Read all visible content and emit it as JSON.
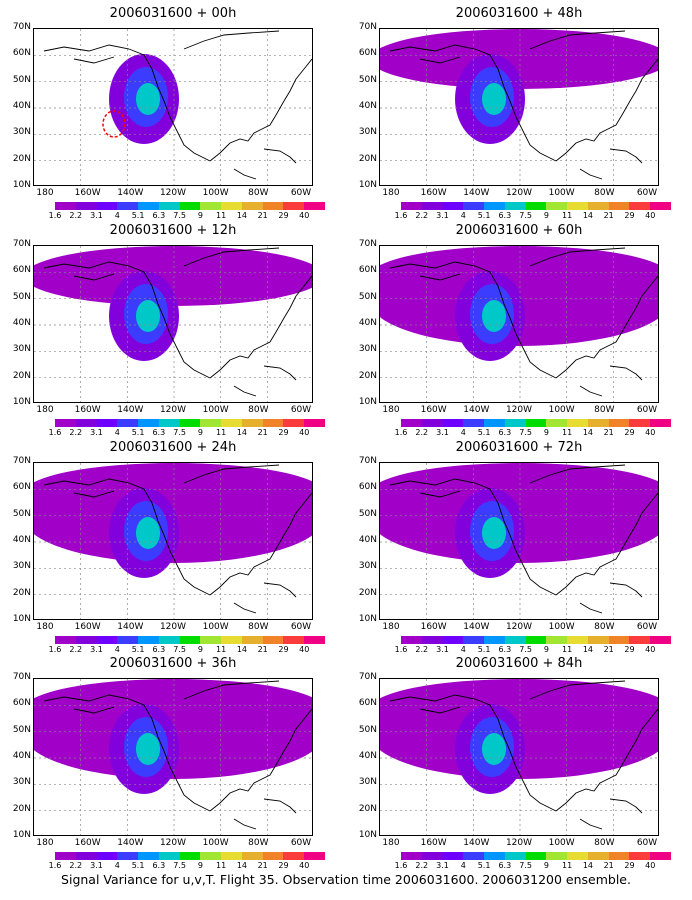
{
  "figure": {
    "footer": "Signal Variance for u,v,T. Flight 35. Observation time 2006031600. 2006031200 ensemble."
  },
  "axes": {
    "lat_labels": [
      "70N",
      "60N",
      "50N",
      "40N",
      "30N",
      "20N",
      "10N"
    ],
    "lon_labels": [
      "180",
      "160W",
      "140W",
      "120W",
      "100W",
      "80W",
      "60W"
    ]
  },
  "colorbar": {
    "labels": [
      "1.6",
      "2.2",
      "3.1",
      "4",
      "5.1",
      "6.3",
      "7.5",
      "9",
      "11",
      "14",
      "21",
      "29",
      "40"
    ],
    "colors": [
      "#a000c8",
      "#8200dc",
      "#6e00ff",
      "#3c3cff",
      "#0096ff",
      "#00c8c8",
      "#00dc00",
      "#a0e632",
      "#e6dc32",
      "#e6af2d",
      "#f08228",
      "#fa3c3c",
      "#f00082"
    ]
  },
  "panels": [
    {
      "title": "2006031600 + 00h"
    },
    {
      "title": "2006031600 + 48h"
    },
    {
      "title": "2006031600 + 12h"
    },
    {
      "title": "2006031600 + 60h"
    },
    {
      "title": "2006031600 + 24h"
    },
    {
      "title": "2006031600 + 72h"
    },
    {
      "title": "2006031600 + 84h"
    },
    {
      "title": "2006031600 + 36h"
    }
  ]
}
